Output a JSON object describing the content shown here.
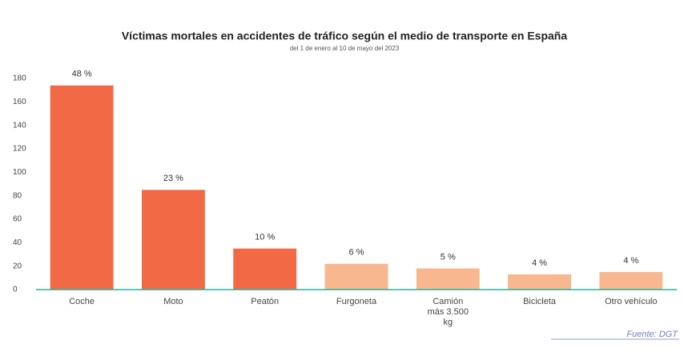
{
  "chart_data": {
    "type": "bar",
    "title": "Víctimas mortales en accidentes de tráfico según el medio de transporte en España",
    "subtitle": "del 1 de enero al 10 de mayo del 2023",
    "categories": [
      "Coche",
      "Moto",
      "Peatón",
      "Furgoneta",
      "Camión más 3.500 kg",
      "Bicicleta",
      "Otro vehículo"
    ],
    "values": [
      174,
      85,
      35,
      22,
      18,
      13,
      15
    ],
    "share_labels": [
      "48 %",
      "23 %",
      "10 %",
      "6 %",
      "5 %",
      "4 %",
      "4 %"
    ],
    "colors": [
      "#f26a45",
      "#f26a45",
      "#f26a45",
      "#f9b78f",
      "#f9b78f",
      "#f9b78f",
      "#f9b78f"
    ],
    "ylim": [
      0,
      180
    ],
    "yticks": [
      0,
      20,
      40,
      60,
      80,
      100,
      120,
      140,
      160,
      180
    ],
    "grid": false,
    "source": "Fuente: DGT"
  }
}
